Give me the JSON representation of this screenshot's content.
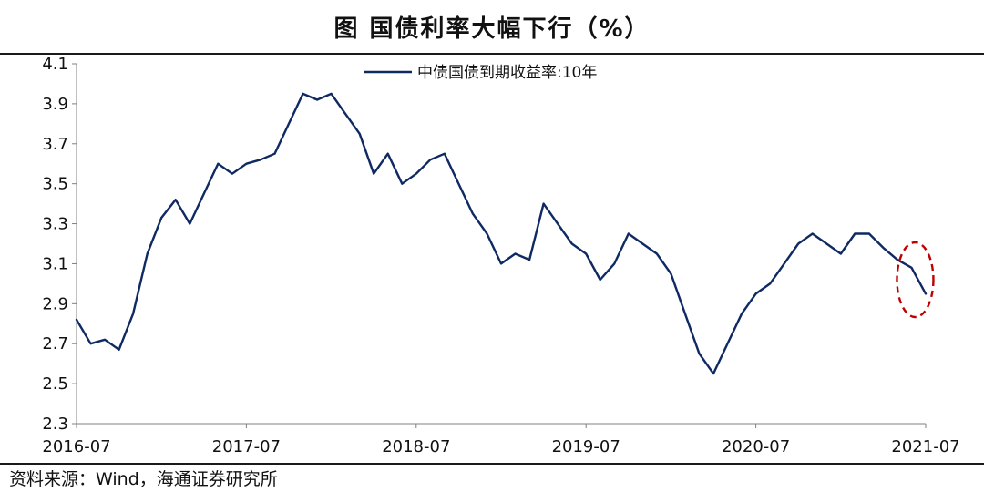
{
  "chart_data": {
    "type": "line",
    "title": "图  国债利率大幅下行（%）",
    "xlabel": "",
    "ylabel": "",
    "ylim": [
      2.3,
      4.1
    ],
    "yticks": [
      "2.3",
      "2.5",
      "2.7",
      "2.9",
      "3.1",
      "3.3",
      "3.5",
      "3.7",
      "3.9",
      "4.1"
    ],
    "xlim": [
      "2016-07",
      "2021-07"
    ],
    "xticks": [
      "2016-07",
      "2017-07",
      "2018-07",
      "2019-07",
      "2020-07",
      "2021-07"
    ],
    "grid": false,
    "legend": "top-center",
    "series": [
      {
        "name": "中债国债到期收益率:10年",
        "color": "#0f2a63",
        "points": [
          [
            "2016-07",
            2.82
          ],
          [
            "2016-08",
            2.7
          ],
          [
            "2016-09",
            2.72
          ],
          [
            "2016-10",
            2.67
          ],
          [
            "2016-11",
            2.85
          ],
          [
            "2016-12",
            3.15
          ],
          [
            "2017-01",
            3.33
          ],
          [
            "2017-02",
            3.42
          ],
          [
            "2017-03",
            3.3
          ],
          [
            "2017-04",
            3.45
          ],
          [
            "2017-05",
            3.6
          ],
          [
            "2017-06",
            3.55
          ],
          [
            "2017-07",
            3.6
          ],
          [
            "2017-08",
            3.62
          ],
          [
            "2017-09",
            3.65
          ],
          [
            "2017-10",
            3.8
          ],
          [
            "2017-11",
            3.95
          ],
          [
            "2017-12",
            3.92
          ],
          [
            "2018-01",
            3.95
          ],
          [
            "2018-02",
            3.85
          ],
          [
            "2018-03",
            3.75
          ],
          [
            "2018-04",
            3.55
          ],
          [
            "2018-05",
            3.65
          ],
          [
            "2018-06",
            3.5
          ],
          [
            "2018-07",
            3.55
          ],
          [
            "2018-08",
            3.62
          ],
          [
            "2018-09",
            3.65
          ],
          [
            "2018-10",
            3.5
          ],
          [
            "2018-11",
            3.35
          ],
          [
            "2018-12",
            3.25
          ],
          [
            "2019-01",
            3.1
          ],
          [
            "2019-02",
            3.15
          ],
          [
            "2019-03",
            3.12
          ],
          [
            "2019-04",
            3.4
          ],
          [
            "2019-05",
            3.3
          ],
          [
            "2019-06",
            3.2
          ],
          [
            "2019-07",
            3.15
          ],
          [
            "2019-08",
            3.02
          ],
          [
            "2019-09",
            3.1
          ],
          [
            "2019-10",
            3.25
          ],
          [
            "2019-11",
            3.2
          ],
          [
            "2019-12",
            3.15
          ],
          [
            "2020-01",
            3.05
          ],
          [
            "2020-02",
            2.85
          ],
          [
            "2020-03",
            2.65
          ],
          [
            "2020-04",
            2.55
          ],
          [
            "2020-05",
            2.7
          ],
          [
            "2020-06",
            2.85
          ],
          [
            "2020-07",
            2.95
          ],
          [
            "2020-08",
            3.0
          ],
          [
            "2020-09",
            3.1
          ],
          [
            "2020-10",
            3.2
          ],
          [
            "2020-11",
            3.25
          ],
          [
            "2020-12",
            3.2
          ],
          [
            "2021-01",
            3.15
          ],
          [
            "2021-02",
            3.25
          ],
          [
            "2021-03",
            3.25
          ],
          [
            "2021-04",
            3.18
          ],
          [
            "2021-05",
            3.12
          ],
          [
            "2021-06",
            3.08
          ],
          [
            "2021-07",
            2.95
          ]
        ]
      }
    ],
    "annotations": [
      {
        "type": "ellipse-highlight",
        "style": "dashed",
        "color": "#c00000",
        "x": "2021-06",
        "y": 3.02
      }
    ]
  },
  "source_text": "资料来源：Wind，海通证券研究所"
}
